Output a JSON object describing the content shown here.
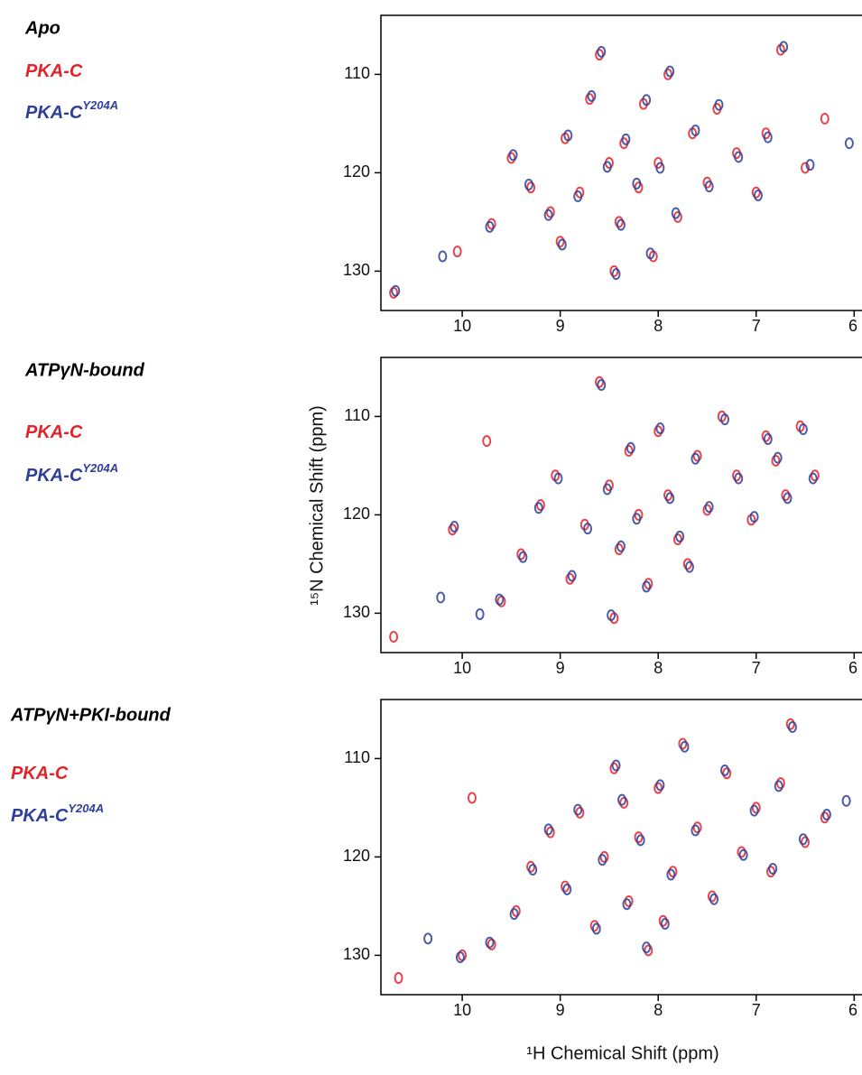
{
  "axis_labels": {
    "y": "¹⁵N Chemical Shift (ppm)",
    "x": "¹H Chemical Shift (ppm)"
  },
  "chart_data": [
    {
      "type": "scatter",
      "title": "Apo",
      "xlim": [
        10.83,
        5.92
      ],
      "ylim": [
        134,
        104
      ],
      "xticks": [
        10,
        9,
        8,
        7,
        6
      ],
      "yticks": [
        110,
        120,
        130
      ],
      "series": [
        {
          "name": "PKA-C",
          "color": "#e3222a",
          "x": [
            10.7,
            10.05,
            9.7,
            9.5,
            9.3,
            9.1,
            9.0,
            8.95,
            8.8,
            8.7,
            8.6,
            8.5,
            8.4,
            8.35,
            8.2,
            8.15,
            8.05,
            8.0,
            7.9,
            7.8,
            7.65,
            7.5,
            7.4,
            7.2,
            7.0,
            6.9,
            6.75,
            6.5,
            6.3,
            8.45
          ],
          "values": [
            132.2,
            128,
            125.2,
            118.5,
            121.5,
            124,
            127,
            116.5,
            122,
            112.5,
            108,
            119,
            125,
            117,
            121.5,
            113,
            128.5,
            119,
            110,
            124.5,
            116,
            121,
            113.5,
            118,
            122,
            116,
            107.5,
            119.5,
            114.5,
            130
          ]
        },
        {
          "name": "PKA-C",
          "name_superscript": "Y204A",
          "color": "#2e3f98",
          "x": [
            10.68,
            10.2,
            9.72,
            9.48,
            9.32,
            9.12,
            8.98,
            8.92,
            8.82,
            8.68,
            8.58,
            8.52,
            8.38,
            8.33,
            8.22,
            8.12,
            8.08,
            7.98,
            7.88,
            7.82,
            7.62,
            7.48,
            7.38,
            7.18,
            6.98,
            6.88,
            6.72,
            6.45,
            6.05,
            8.43
          ],
          "values": [
            132.0,
            128.5,
            125.5,
            118.2,
            121.2,
            124.3,
            127.3,
            116.2,
            122.4,
            112.2,
            107.7,
            119.4,
            125.3,
            116.6,
            121.1,
            112.6,
            128.2,
            119.5,
            109.7,
            124.1,
            115.7,
            121.4,
            113.1,
            118.4,
            122.3,
            116.4,
            107.2,
            119.2,
            117,
            130.3
          ]
        }
      ]
    },
    {
      "type": "scatter",
      "title": "ATPγN-bound",
      "xlim": [
        10.83,
        5.92
      ],
      "ylim": [
        134,
        104
      ],
      "xticks": [
        10,
        9,
        8,
        7,
        6
      ],
      "yticks": [
        110,
        120,
        130
      ],
      "series": [
        {
          "name": "PKA-C",
          "color": "#e3222a",
          "x": [
            10.7,
            10.1,
            9.75,
            9.6,
            9.4,
            9.2,
            9.05,
            8.9,
            8.75,
            8.6,
            8.5,
            8.4,
            8.3,
            8.2,
            8.1,
            8.0,
            7.9,
            7.8,
            7.6,
            7.5,
            7.35,
            7.2,
            7.05,
            6.9,
            6.8,
            6.7,
            6.55,
            6.4,
            8.45,
            7.7
          ],
          "values": [
            132.4,
            121.5,
            112.5,
            128.8,
            124,
            119,
            116,
            126.5,
            121,
            106.5,
            117,
            123.5,
            113.5,
            120,
            127,
            111.5,
            118,
            122.5,
            114,
            119.5,
            110,
            116,
            120.5,
            112,
            114.5,
            118,
            111,
            116,
            130.5,
            125
          ]
        },
        {
          "name": "PKA-C",
          "name_superscript": "Y204A",
          "color": "#2e3f98",
          "x": [
            10.22,
            10.08,
            9.82,
            9.62,
            9.38,
            9.22,
            9.02,
            8.88,
            8.72,
            8.58,
            8.52,
            8.38,
            8.28,
            8.22,
            8.12,
            7.98,
            7.88,
            7.78,
            7.62,
            7.48,
            7.32,
            7.18,
            7.02,
            6.88,
            6.78,
            6.68,
            6.52,
            6.42,
            8.48,
            7.68
          ],
          "values": [
            128.4,
            121.2,
            130.1,
            128.6,
            124.3,
            119.3,
            116.3,
            126.2,
            121.4,
            106.8,
            117.4,
            123.2,
            113.2,
            120.4,
            127.3,
            111.2,
            118.3,
            122.2,
            114.3,
            119.2,
            110.3,
            116.3,
            120.2,
            112.3,
            114.2,
            118.3,
            111.3,
            116.3,
            130.2,
            125.3
          ]
        }
      ]
    },
    {
      "type": "scatter",
      "title": "ATPγN+PKI-bound",
      "xlim": [
        10.83,
        5.92
      ],
      "ylim": [
        134,
        104
      ],
      "xticks": [
        10,
        9,
        8,
        7,
        6
      ],
      "yticks": [
        110,
        120,
        130
      ],
      "series": [
        {
          "name": "PKA-C",
          "color": "#e3222a",
          "x": [
            10.65,
            10.0,
            9.7,
            9.45,
            9.3,
            9.1,
            8.95,
            8.8,
            8.65,
            8.55,
            8.45,
            8.3,
            8.2,
            8.1,
            8.0,
            7.85,
            7.75,
            7.6,
            7.45,
            7.3,
            7.15,
            7.0,
            6.85,
            6.75,
            6.65,
            6.5,
            6.3,
            8.35,
            7.95,
            9.9
          ],
          "values": [
            132.3,
            130,
            128.9,
            125.5,
            121,
            117.5,
            123,
            115.5,
            127,
            120,
            111,
            124.5,
            118,
            129.5,
            113,
            121.5,
            108.5,
            117,
            124,
            111.5,
            119.5,
            115,
            121.5,
            112.5,
            106.5,
            118.5,
            116,
            114.5,
            126.5,
            114
          ]
        },
        {
          "name": "PKA-C",
          "name_superscript": "Y204A",
          "color": "#2e3f98",
          "x": [
            10.35,
            10.02,
            9.72,
            9.47,
            9.28,
            9.12,
            8.93,
            8.82,
            8.63,
            8.57,
            8.43,
            8.32,
            8.18,
            8.12,
            7.98,
            7.87,
            7.73,
            7.62,
            7.43,
            7.32,
            7.13,
            7.02,
            6.83,
            6.77,
            6.63,
            6.52,
            6.28,
            8.37,
            7.93,
            6.08
          ],
          "values": [
            128.3,
            130.2,
            128.7,
            125.8,
            121.3,
            117.2,
            123.3,
            115.2,
            127.3,
            120.3,
            110.7,
            124.8,
            118.3,
            129.2,
            112.7,
            121.8,
            108.8,
            117.3,
            124.3,
            111.2,
            119.8,
            115.3,
            121.2,
            112.8,
            106.8,
            118.2,
            115.7,
            114.2,
            126.8,
            114.3
          ]
        }
      ]
    }
  ]
}
